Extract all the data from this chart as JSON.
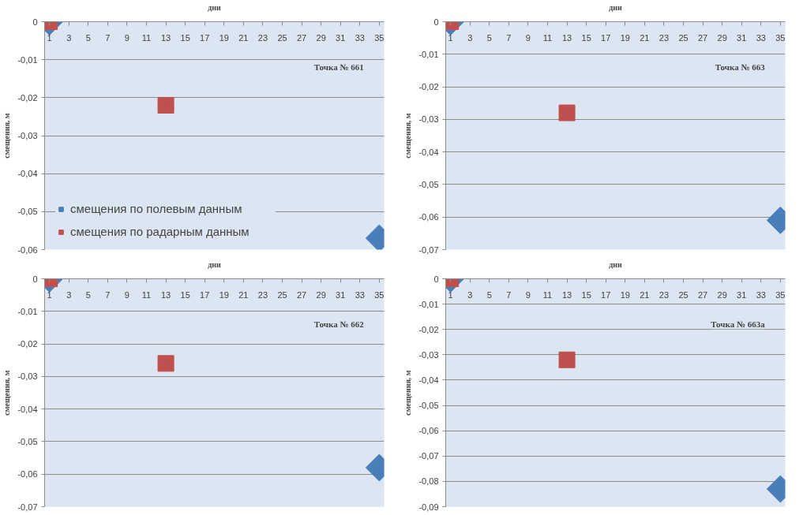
{
  "chart_data": [
    {
      "type": "scatter",
      "xlabel": "дни",
      "ylabel": "смещения, м",
      "annotations": [
        "Точка № 661"
      ],
      "xlim": [
        0.5,
        35.5
      ],
      "xticks": [
        1,
        3,
        5,
        7,
        9,
        11,
        13,
        15,
        17,
        19,
        21,
        23,
        25,
        27,
        29,
        31,
        33,
        35
      ],
      "ylim": [
        -0.06,
        0
      ],
      "yticks": [
        {
          "value": 0,
          "label": "0"
        },
        {
          "value": -0.01,
          "label": "-0,01"
        },
        {
          "value": -0.02,
          "label": "-0,02"
        },
        {
          "value": -0.03,
          "label": "-0,03"
        },
        {
          "value": -0.04,
          "label": "-0,04"
        },
        {
          "value": -0.05,
          "label": "-0,05"
        },
        {
          "value": -0.06,
          "label": "-0,06"
        }
      ],
      "grid": "y",
      "legend": "bottom left",
      "series": [
        {
          "name": "смещения по полевым данным",
          "color": "#4a7ebb",
          "marker": "diamond",
          "x": [
            1,
            35
          ],
          "values": [
            0,
            -0.057
          ]
        },
        {
          "name": "смещения по радарным данным",
          "color": "#c0504d",
          "marker": "square",
          "x": [
            1,
            13
          ],
          "values": [
            0,
            -0.022
          ]
        }
      ]
    },
    {
      "type": "scatter",
      "xlabel": "дни",
      "ylabel": "смещения, м",
      "annotations": [
        "Точка № 663"
      ],
      "xlim": [
        0.5,
        35.5
      ],
      "xticks": [
        1,
        3,
        5,
        7,
        9,
        11,
        13,
        15,
        17,
        19,
        21,
        23,
        25,
        27,
        29,
        31,
        33,
        35
      ],
      "ylim": [
        -0.07,
        0
      ],
      "yticks": [
        {
          "value": 0,
          "label": "0"
        },
        {
          "value": -0.01,
          "label": "-0,01"
        },
        {
          "value": -0.02,
          "label": "-0,02"
        },
        {
          "value": -0.03,
          "label": "-0,03"
        },
        {
          "value": -0.04,
          "label": "-0,04"
        },
        {
          "value": -0.05,
          "label": "-0,05"
        },
        {
          "value": -0.06,
          "label": "-0,06"
        },
        {
          "value": -0.07,
          "label": "-0,07"
        }
      ],
      "grid": "y",
      "series": [
        {
          "color": "#4a7ebb",
          "marker": "diamond",
          "x": [
            1,
            35
          ],
          "values": [
            0,
            -0.061
          ]
        },
        {
          "color": "#c0504d",
          "marker": "square",
          "x": [
            1,
            13
          ],
          "values": [
            0,
            -0.028
          ]
        }
      ]
    },
    {
      "type": "scatter",
      "xlabel": "дни",
      "ylabel": "смещения, м",
      "annotations": [
        "Точка № 662"
      ],
      "xlim": [
        0.5,
        35.5
      ],
      "xticks": [
        1,
        3,
        5,
        7,
        9,
        11,
        13,
        15,
        17,
        19,
        21,
        23,
        25,
        27,
        29,
        31,
        33,
        35
      ],
      "ylim": [
        -0.07,
        0
      ],
      "yticks": [
        {
          "value": 0,
          "label": "0"
        },
        {
          "value": -0.01,
          "label": "-0,01"
        },
        {
          "value": -0.02,
          "label": "-0,02"
        },
        {
          "value": -0.03,
          "label": "-0,03"
        },
        {
          "value": -0.04,
          "label": "-0,04"
        },
        {
          "value": -0.05,
          "label": "-0,05"
        },
        {
          "value": -0.06,
          "label": "-0,06"
        },
        {
          "value": -0.07,
          "label": "-0,07"
        }
      ],
      "grid": "y",
      "series": [
        {
          "color": "#4a7ebb",
          "marker": "diamond",
          "x": [
            1,
            35
          ],
          "values": [
            0,
            -0.058
          ]
        },
        {
          "color": "#c0504d",
          "marker": "square",
          "x": [
            1,
            13
          ],
          "values": [
            0,
            -0.026
          ]
        }
      ]
    },
    {
      "type": "scatter",
      "xlabel": "дни",
      "ylabel": "смещения, м",
      "annotations": [
        "Точка № 663а"
      ],
      "xlim": [
        0.5,
        35.5
      ],
      "xticks": [
        1,
        3,
        5,
        7,
        9,
        11,
        13,
        15,
        17,
        19,
        21,
        23,
        25,
        27,
        29,
        31,
        33,
        35
      ],
      "ylim": [
        -0.09,
        0
      ],
      "yticks": [
        {
          "value": 0,
          "label": "0"
        },
        {
          "value": -0.01,
          "label": "-0,01"
        },
        {
          "value": -0.02,
          "label": "-0,02"
        },
        {
          "value": -0.03,
          "label": "-0,03"
        },
        {
          "value": -0.04,
          "label": "-0,04"
        },
        {
          "value": -0.05,
          "label": "-0,05"
        },
        {
          "value": -0.06,
          "label": "-0,06"
        },
        {
          "value": -0.07,
          "label": "-0,07"
        },
        {
          "value": -0.08,
          "label": "-0,08"
        },
        {
          "value": -0.09,
          "label": "-0,09"
        }
      ],
      "grid": "y",
      "series": [
        {
          "color": "#4a7ebb",
          "marker": "diamond",
          "x": [
            1,
            35
          ],
          "values": [
            0,
            -0.083
          ]
        },
        {
          "color": "#c0504d",
          "marker": "square",
          "x": [
            1,
            13
          ],
          "values": [
            0,
            -0.032
          ]
        }
      ]
    }
  ]
}
